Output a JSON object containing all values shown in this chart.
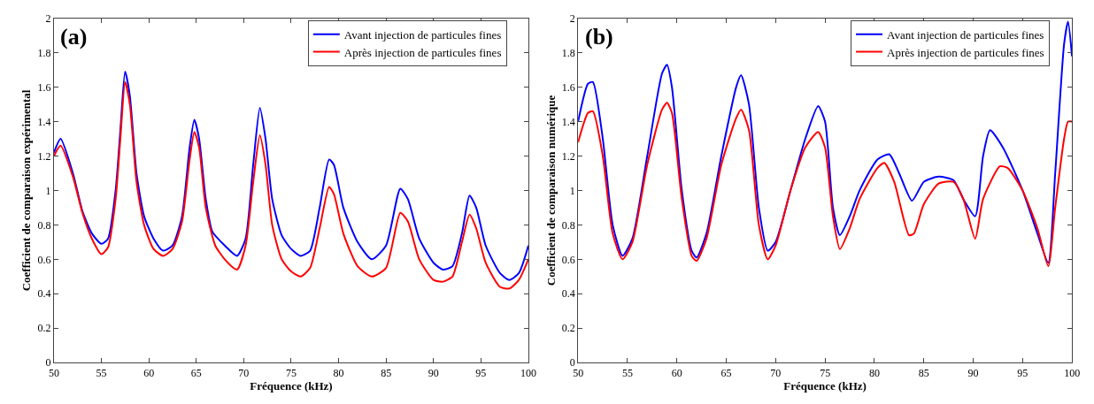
{
  "chart_data": [
    {
      "type": "line",
      "title": "(a)",
      "xlabel": "Fréquence (kHz)",
      "ylabel": "Coefficient de comparaison expérimental",
      "xlim": [
        50,
        100
      ],
      "xticks": [
        50,
        55,
        60,
        65,
        70,
        75,
        80,
        85,
        90,
        95,
        100
      ],
      "ylim": [
        0,
        2
      ],
      "yticks": [
        0,
        0.2,
        0.4,
        0.6,
        0.8,
        1,
        1.2,
        1.4,
        1.6,
        1.8,
        2
      ],
      "legend": "top right",
      "marker": "none",
      "line_style": "solid",
      "series": [
        {
          "name": "Avant injection de particules fines",
          "color": "#0000ff",
          "x": [
            50,
            50.7,
            52,
            53,
            54,
            55,
            55.7,
            56.5,
            57,
            57.5,
            58,
            58.7,
            59.5,
            60.5,
            61.5,
            62.5,
            63.5,
            64.3,
            64.8,
            65.3,
            66,
            66.7,
            68,
            69.3,
            70.2,
            71,
            71.7,
            72.3,
            73,
            74,
            75,
            76,
            77,
            78,
            79,
            79.5,
            80.5,
            82,
            83.5,
            85,
            86.5,
            87.3,
            88.5,
            90,
            91,
            92,
            93,
            93.8,
            94.5,
            95.5,
            97,
            98,
            99,
            100
          ],
          "values": [
            1.22,
            1.3,
            1.1,
            0.88,
            0.75,
            0.69,
            0.72,
            1.0,
            1.35,
            1.69,
            1.55,
            1.1,
            0.85,
            0.72,
            0.65,
            0.68,
            0.85,
            1.25,
            1.41,
            1.3,
            0.95,
            0.76,
            0.68,
            0.62,
            0.72,
            1.15,
            1.48,
            1.3,
            0.95,
            0.74,
            0.66,
            0.62,
            0.65,
            0.9,
            1.18,
            1.15,
            0.9,
            0.7,
            0.6,
            0.68,
            1.01,
            0.95,
            0.72,
            0.58,
            0.54,
            0.56,
            0.75,
            0.97,
            0.9,
            0.68,
            0.52,
            0.48,
            0.52,
            0.68
          ]
        },
        {
          "name": "Après injection de particules fines",
          "color": "#ff0000",
          "x": [
            50,
            50.7,
            52,
            53,
            54,
            55,
            55.7,
            56.5,
            57,
            57.5,
            58,
            58.7,
            59.5,
            60.5,
            61.5,
            62.5,
            63.5,
            64.3,
            64.8,
            65.3,
            66,
            67,
            68,
            69.3,
            70.2,
            71,
            71.7,
            72.3,
            73,
            74,
            75,
            76,
            77,
            78,
            79,
            79.5,
            80.5,
            82,
            83.5,
            85,
            86.5,
            87.3,
            88.5,
            90,
            91,
            92,
            93,
            93.8,
            94.5,
            95.5,
            97,
            98,
            99,
            100
          ],
          "values": [
            1.2,
            1.26,
            1.08,
            0.87,
            0.72,
            0.63,
            0.67,
            0.95,
            1.3,
            1.63,
            1.5,
            1.05,
            0.8,
            0.66,
            0.62,
            0.66,
            0.82,
            1.18,
            1.34,
            1.25,
            0.9,
            0.68,
            0.6,
            0.54,
            0.68,
            1.05,
            1.32,
            1.15,
            0.8,
            0.6,
            0.53,
            0.5,
            0.55,
            0.78,
            1.02,
            0.98,
            0.75,
            0.56,
            0.5,
            0.55,
            0.87,
            0.82,
            0.6,
            0.48,
            0.47,
            0.5,
            0.7,
            0.86,
            0.78,
            0.58,
            0.44,
            0.43,
            0.48,
            0.6
          ]
        }
      ]
    },
    {
      "type": "line",
      "title": "(b)",
      "xlabel": "Fréquence (kHz)",
      "ylabel": "Coefficient de comparaison numérique",
      "xlim": [
        50,
        100
      ],
      "xticks": [
        50,
        55,
        60,
        65,
        70,
        75,
        80,
        85,
        90,
        95,
        100
      ],
      "ylim": [
        0,
        2
      ],
      "yticks": [
        0,
        0.2,
        0.4,
        0.6,
        0.8,
        1,
        1.2,
        1.4,
        1.6,
        1.8,
        2
      ],
      "legend": "top right",
      "marker": "none",
      "line_style": "solid",
      "series": [
        {
          "name": "Avant injection de particules fines",
          "color": "#0000ff",
          "x": [
            50,
            51,
            51.5,
            52.5,
            53.5,
            54.5,
            55.5,
            57,
            58.5,
            59,
            59.5,
            60.5,
            61.5,
            62,
            63,
            64.5,
            66,
            66.5,
            67.3,
            68.3,
            69.2,
            70,
            71.5,
            73,
            74.3,
            75,
            75.8,
            76.5,
            77.5,
            78.5,
            80.3,
            81.5,
            82.5,
            83.8,
            85,
            86.5,
            88,
            89,
            90.2,
            91,
            91.7,
            93,
            95,
            96.5,
            97.6,
            98.3,
            99.2,
            99.6,
            100
          ],
          "values": [
            1.4,
            1.62,
            1.63,
            1.3,
            0.8,
            0.62,
            0.72,
            1.2,
            1.68,
            1.73,
            1.6,
            1.0,
            0.65,
            0.61,
            0.75,
            1.2,
            1.6,
            1.67,
            1.5,
            0.9,
            0.65,
            0.7,
            1.0,
            1.3,
            1.49,
            1.4,
            0.9,
            0.74,
            0.85,
            1.0,
            1.18,
            1.21,
            1.1,
            0.94,
            1.05,
            1.08,
            1.06,
            0.95,
            0.85,
            1.2,
            1.35,
            1.25,
            1.0,
            0.75,
            0.58,
            1.1,
            1.85,
            1.98,
            1.78
          ]
        },
        {
          "name": "Après injection de particules fines",
          "color": "#ff0000",
          "x": [
            50,
            51,
            51.5,
            52.5,
            53.5,
            54.5,
            55.5,
            57,
            58.5,
            59,
            59.5,
            60.5,
            61.5,
            62,
            63,
            64.5,
            66,
            66.5,
            67.3,
            68.3,
            69.2,
            70,
            71.5,
            73,
            74.3,
            75,
            75.8,
            76.5,
            77.5,
            78.5,
            80.3,
            81,
            82,
            83.5,
            84,
            85,
            86.5,
            88,
            89,
            90.2,
            91,
            92.7,
            93.5,
            95,
            96.5,
            97.6,
            98.3,
            99.2,
            99.6,
            100
          ],
          "values": [
            1.28,
            1.45,
            1.46,
            1.2,
            0.75,
            0.6,
            0.7,
            1.15,
            1.47,
            1.51,
            1.45,
            0.95,
            0.62,
            0.59,
            0.72,
            1.15,
            1.42,
            1.47,
            1.35,
            0.8,
            0.6,
            0.68,
            1.0,
            1.25,
            1.34,
            1.25,
            0.85,
            0.66,
            0.78,
            0.95,
            1.13,
            1.16,
            1.05,
            0.74,
            0.75,
            0.92,
            1.04,
            1.05,
            0.95,
            0.72,
            0.95,
            1.14,
            1.13,
            1.0,
            0.78,
            0.56,
            0.9,
            1.3,
            1.4,
            1.4
          ]
        }
      ]
    }
  ]
}
